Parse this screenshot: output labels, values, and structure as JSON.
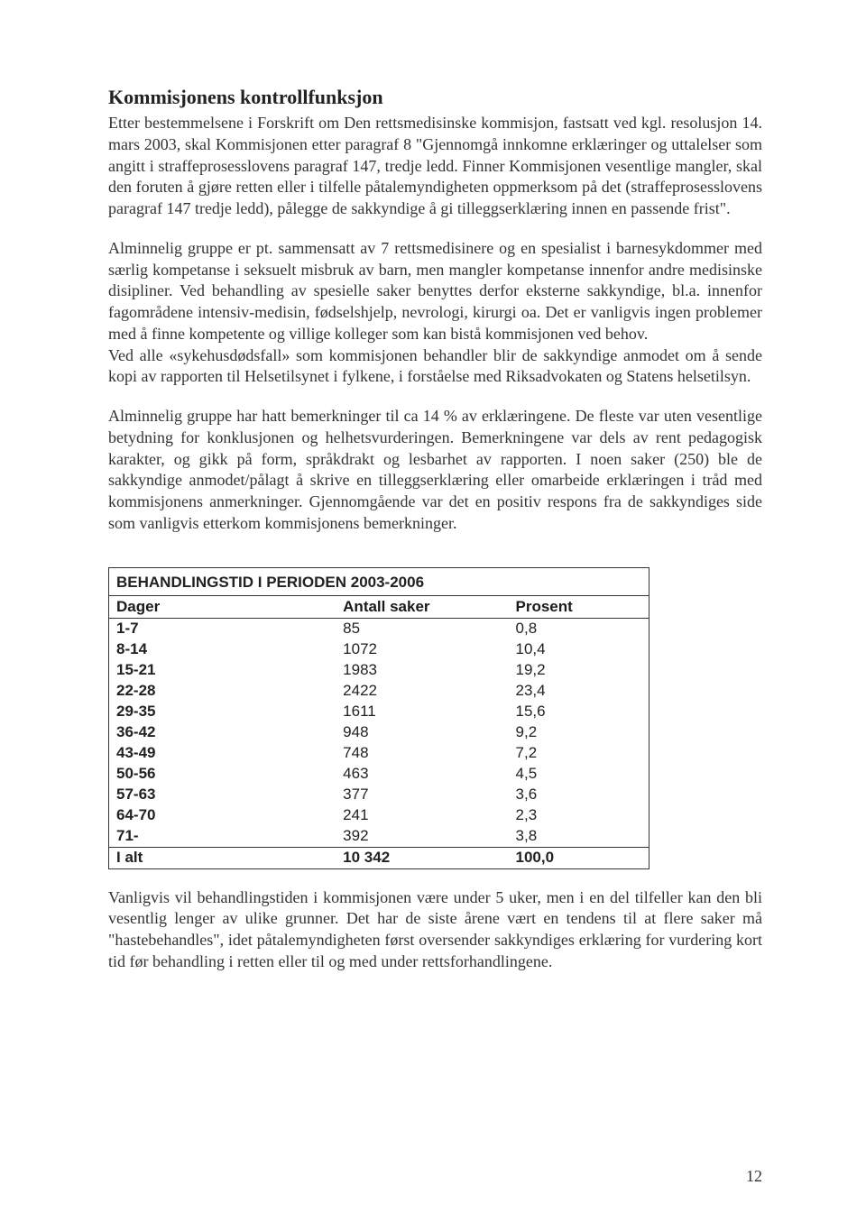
{
  "heading": "Kommisjonens kontrollfunksjon",
  "para1": "Etter bestemmelsene i Forskrift om Den rettsmedisinske kommisjon, fastsatt ved kgl. resolusjon 14. mars 2003, skal Kommisjonen etter paragraf 8 \"Gjennomgå innkomne erklæringer og uttalelser som angitt i straffeprosesslovens paragraf 147, tredje ledd. Finner Kommisjonen vesentlige mangler, skal den foruten å gjøre retten eller i tilfelle påtalemyndigheten oppmerksom på det (straffeprosesslovens paragraf 147 tredje ledd), pålegge de sakkyndige å gi tilleggserklæring innen en passende frist\".",
  "para2a": "Alminnelig gruppe er pt. sammensatt av 7 rettsmedisinere og en spesialist i barnesykdommer med særlig kompetanse i seksuelt misbruk av barn, men mangler kompetanse innenfor andre medisinske disipliner. Ved behandling av spesielle saker benyttes derfor eksterne sakkyndige, bl.a. innenfor fagområdene intensiv-medisin, fødselshjelp, nevrologi, kirurgi oa. Det er vanligvis ingen problemer med å finne kompetente og villige kolleger som kan bistå kommisjonen ved behov.",
  "para2b": "Ved alle «sykehusdødsfall» som kommisjonen behandler blir de sakkyndige anmodet om å sende kopi av rapporten til Helsetilsynet i fylkene, i forståelse med Riksadvokaten og Statens helsetilsyn.",
  "para3": "Alminnelig gruppe har hatt bemerkninger til ca 14 % av erklæringene. De fleste var uten vesentlige betydning for konklusjonen og helhetsvurderingen. Bemerkningene var dels av rent pedagogisk karakter, og gikk på form, språkdrakt og lesbarhet av rapporten. I noen saker (250) ble de sakkyndige anmodet/pålagt å skrive en tilleggserklæring eller omarbeide erklæringen i tråd med kommisjonens anmerkninger. Gjennomgående var det en positiv respons fra de sakkyndiges side som vanligvis etterkom kommisjonens bemerkninger.",
  "table": {
    "title": "BEHANDLINGSTID I PERIODEN 2003-2006",
    "columns": [
      "Dager",
      "Antall saker",
      "Prosent"
    ],
    "rows": [
      [
        "1-7",
        "85",
        "0,8"
      ],
      [
        "8-14",
        "1072",
        "10,4"
      ],
      [
        "15-21",
        "1983",
        "19,2"
      ],
      [
        "22-28",
        "2422",
        "23,4"
      ],
      [
        "29-35",
        "1611",
        "15,6"
      ],
      [
        "36-42",
        "948",
        "9,2"
      ],
      [
        "43-49",
        "748",
        "7,2"
      ],
      [
        "50-56",
        "463",
        "4,5"
      ],
      [
        "57-63",
        "377",
        "3,6"
      ],
      [
        "64-70",
        "241",
        "2,3"
      ],
      [
        "71-",
        "392",
        "3,8"
      ]
    ],
    "total": [
      "I alt",
      "10 342",
      "100,0"
    ]
  },
  "para4": "Vanligvis vil behandlingstiden i kommisjonen være under 5 uker, men i en del tilfeller kan den bli vesentlig lenger av ulike grunner. Det har de siste årene vært en tendens til at flere saker må \"hastebehandles\", idet påtalemyndigheten først oversender sakkyndiges erklæring for vurdering kort tid før behandling i retten eller til og med under rettsforhandlingene.",
  "page_number": "12"
}
